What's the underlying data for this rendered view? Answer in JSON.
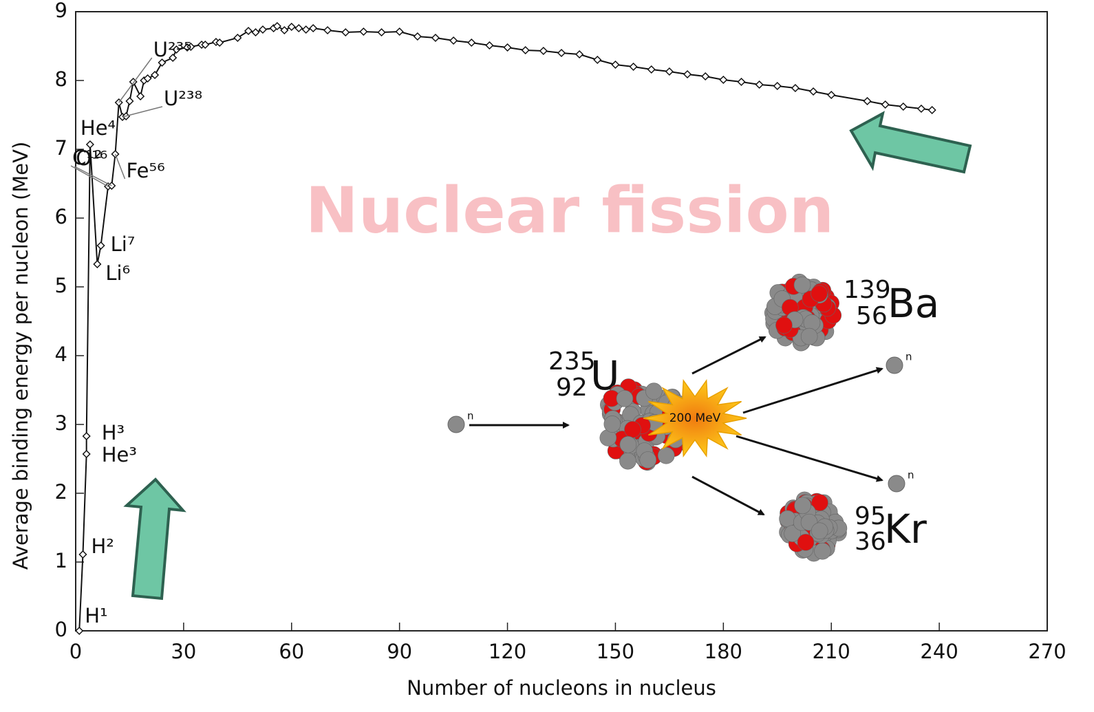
{
  "chart_data": {
    "type": "line",
    "title": "Nuclear fission",
    "x_label": "Number of nucleons in nucleus",
    "y_label": "Average binding energy per nucleon (MeV)",
    "xlim": [
      0,
      270
    ],
    "xticks": [
      0,
      30,
      60,
      90,
      120,
      150,
      180,
      210,
      240,
      270
    ],
    "ylim": [
      0,
      9
    ],
    "yticks": [
      0,
      1,
      2,
      3,
      4,
      5,
      6,
      7,
      8,
      9
    ],
    "series": [
      {
        "color": "#111111",
        "x": [
          1,
          2,
          3,
          3,
          4,
          6,
          7,
          9,
          10,
          11,
          12,
          13,
          14,
          15,
          16,
          18,
          19,
          20,
          22,
          24,
          27,
          28,
          31,
          32,
          35,
          36,
          39,
          40,
          45,
          48,
          50,
          52,
          55,
          56,
          58,
          60,
          62,
          64,
          66,
          70,
          75,
          80,
          85,
          90,
          95,
          100,
          105,
          110,
          115,
          120,
          125,
          130,
          135,
          140,
          145,
          150,
          155,
          160,
          165,
          170,
          175,
          180,
          185,
          190,
          195,
          200,
          205,
          210,
          220,
          225,
          230,
          235,
          238
        ],
        "values": [
          0,
          1.11,
          2.57,
          2.83,
          7.07,
          5.33,
          5.6,
          6.46,
          6.47,
          6.93,
          7.68,
          7.47,
          7.48,
          7.7,
          7.98,
          7.77,
          8.0,
          8.03,
          8.08,
          8.26,
          8.33,
          8.45,
          8.48,
          8.49,
          8.52,
          8.52,
          8.56,
          8.55,
          8.62,
          8.72,
          8.7,
          8.74,
          8.76,
          8.79,
          8.73,
          8.78,
          8.76,
          8.74,
          8.76,
          8.73,
          8.7,
          8.71,
          8.7,
          8.71,
          8.64,
          8.62,
          8.58,
          8.55,
          8.51,
          8.48,
          8.44,
          8.43,
          8.4,
          8.38,
          8.3,
          8.23,
          8.2,
          8.16,
          8.13,
          8.09,
          8.06,
          8.01,
          7.98,
          7.94,
          7.92,
          7.89,
          7.84,
          7.79,
          7.7,
          7.65,
          7.62,
          7.59,
          7.57
        ]
      }
    ],
    "annotations": [
      "H¹",
      "H²",
      "He³",
      "H³",
      "He⁴",
      "Li⁶",
      "Li⁷",
      "C¹²",
      "O¹⁶",
      "Fe⁵⁶",
      "U²³⁵",
      "U²³⁸"
    ]
  },
  "diagram": {
    "energy": "200 MeV",
    "uranium": {
      "mass": "235",
      "number": "92",
      "symbol": "U"
    },
    "barium": {
      "mass": "139",
      "number": "56",
      "symbol": "Ba"
    },
    "krypton": {
      "mass": "95",
      "number": "36",
      "symbol": "Kr"
    },
    "neutron": "n"
  }
}
